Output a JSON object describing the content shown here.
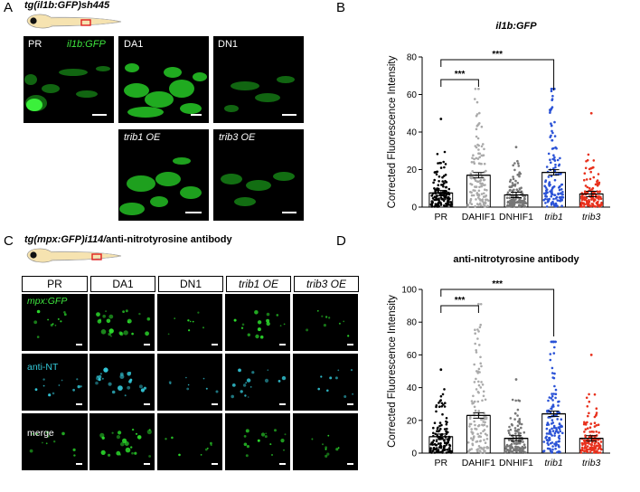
{
  "panelA": {
    "letter": "A",
    "title": "tg(il1b:GFP)sh445",
    "labels": {
      "pr": "PR",
      "gfp": "il1b:GFP",
      "da1": "DA1",
      "dn1": "DN1",
      "trib1": "trib1 OE",
      "trib3": "trib3 OE"
    }
  },
  "panelB": {
    "letter": "B"
  },
  "panelC": {
    "letter": "C",
    "title_italic": "tg(mpx:GFP)i114/",
    "title_plain": "anti-nitrotyrosine antibody",
    "headers": [
      "PR",
      "DA1",
      "DN1",
      "trib1 OE",
      "trib3 OE"
    ],
    "rows": [
      "mpx:GFP",
      "anti-NT",
      "merge"
    ]
  },
  "panelD": {
    "letter": "D"
  },
  "chart_data": [
    {
      "type": "scatter",
      "title": "il1b:GFP",
      "ylabel": "Corrected Fluorescence Intensity",
      "ylim": [
        0,
        80
      ],
      "yticks": [
        "0",
        "20",
        "40",
        "60",
        "80"
      ],
      "categories": [
        "PR",
        "DAHIF1",
        "DNHIF1",
        "trib1",
        "trib3"
      ],
      "means": [
        7.5,
        17,
        6.5,
        18.5,
        7
      ],
      "maxes": [
        47,
        63,
        32,
        63,
        50
      ],
      "colors": [
        "#000000",
        "#aaaaaa",
        "#777777",
        "#2a52d6",
        "#e8301c"
      ],
      "significance": [
        {
          "from": "PR",
          "to": "DAHIF1",
          "label": "***"
        },
        {
          "from": "PR",
          "to": "trib1",
          "label": "***"
        }
      ]
    },
    {
      "type": "scatter",
      "title": "anti-nitrotyrosine antibody",
      "ylabel": "Corrected Fluorescence Intensity",
      "ylim": [
        0,
        100
      ],
      "yticks": [
        "0",
        "20",
        "40",
        "60",
        "80",
        "100"
      ],
      "categories": [
        "PR",
        "DAHIF1",
        "DNHIF1",
        "trib1",
        "trib3"
      ],
      "means": [
        10,
        23,
        9,
        24,
        9
      ],
      "maxes": [
        51,
        91,
        45,
        68,
        60
      ],
      "colors": [
        "#000000",
        "#aaaaaa",
        "#777777",
        "#2a52d6",
        "#e8301c"
      ],
      "significance": [
        {
          "from": "PR",
          "to": "DAHIF1",
          "label": "***"
        },
        {
          "from": "PR",
          "to": "trib1",
          "label": "***"
        }
      ]
    }
  ]
}
